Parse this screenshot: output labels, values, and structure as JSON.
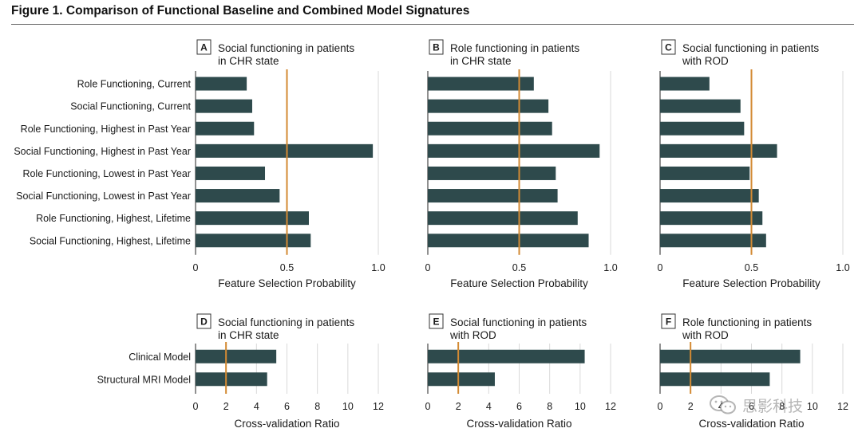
{
  "figure": {
    "title": "Figure 1. Comparison of Functional Baseline and Combined Model Signatures",
    "watermark": "思影科技"
  },
  "colors": {
    "bar": "#2e4a4c",
    "reference_line": "#d38a33",
    "grid": "#d9d9d9",
    "axis": "#222222"
  },
  "chart_data": [
    {
      "panel_letter": "A",
      "title_lines": [
        "Social functioning in patients",
        "in CHR state"
      ],
      "type": "bar",
      "orientation": "horizontal",
      "categories": [
        "Role Functioning, Current",
        "Social Functioning, Current",
        "Role Functioning, Highest in Past Year",
        "Social Functioning, Highest in Past Year",
        "Role Functioning, Lowest in Past Year",
        "Social Functioning, Lowest in Past Year",
        "Role Functioning, Highest, Lifetime",
        "Social Functioning, Highest, Lifetime"
      ],
      "values": [
        0.28,
        0.31,
        0.32,
        0.97,
        0.38,
        0.46,
        0.62,
        0.63
      ],
      "reference_line": 0.5,
      "xlim": [
        0,
        1
      ],
      "xticks": [
        "0",
        "0.5",
        "1.0"
      ],
      "xlabel": "Feature Selection Probability",
      "grid": true
    },
    {
      "panel_letter": "B",
      "title_lines": [
        "Role functioning in patients",
        "in CHR state"
      ],
      "type": "bar",
      "orientation": "horizontal",
      "categories": [
        "Role Functioning, Current",
        "Social Functioning, Current",
        "Role Functioning, Highest in Past Year",
        "Social Functioning, Highest in Past Year",
        "Role Functioning, Lowest in Past Year",
        "Social Functioning, Lowest in Past Year",
        "Role Functioning, Highest, Lifetime",
        "Social Functioning, Highest, Lifetime"
      ],
      "values": [
        0.58,
        0.66,
        0.68,
        0.94,
        0.7,
        0.71,
        0.82,
        0.88
      ],
      "reference_line": 0.5,
      "xlim": [
        0,
        1
      ],
      "xticks": [
        "0",
        "0.5",
        "1.0"
      ],
      "xlabel": "Feature Selection Probability",
      "grid": true
    },
    {
      "panel_letter": "C",
      "title_lines": [
        "Social functioning in patients",
        "with ROD"
      ],
      "type": "bar",
      "orientation": "horizontal",
      "categories": [
        "Role Functioning, Current",
        "Social Functioning, Current",
        "Role Functioning, Highest in Past Year",
        "Social Functioning, Highest in Past Year",
        "Role Functioning, Lowest in Past Year",
        "Social Functioning, Lowest in Past Year",
        "Role Functioning, Highest, Lifetime",
        "Social Functioning, Highest, Lifetime"
      ],
      "values": [
        0.27,
        0.44,
        0.46,
        0.64,
        0.49,
        0.54,
        0.56,
        0.58
      ],
      "reference_line": 0.5,
      "xlim": [
        0,
        1
      ],
      "xticks": [
        "0",
        "0.5",
        "1.0"
      ],
      "xlabel": "Feature Selection Probability",
      "grid": true
    },
    {
      "panel_letter": "D",
      "title_lines": [
        "Social functioning in patients",
        "in CHR state"
      ],
      "type": "bar",
      "orientation": "horizontal",
      "categories": [
        "Clinical Model",
        "Structural MRI Model"
      ],
      "values": [
        5.3,
        4.7
      ],
      "reference_line": 2,
      "xlim": [
        0,
        12
      ],
      "xticks": [
        "0",
        "2",
        "4",
        "6",
        "8",
        "10",
        "12"
      ],
      "xlabel": "Cross-validation Ratio",
      "grid": true
    },
    {
      "panel_letter": "E",
      "title_lines": [
        "Social functioning in patients",
        "with ROD"
      ],
      "type": "bar",
      "orientation": "horizontal",
      "categories": [
        "Clinical Model",
        "Structural MRI Model"
      ],
      "values": [
        10.3,
        4.4
      ],
      "reference_line": 2,
      "xlim": [
        0,
        12
      ],
      "xticks": [
        "0",
        "2",
        "4",
        "6",
        "8",
        "10",
        "12"
      ],
      "xlabel": "Cross-validation Ratio",
      "grid": true
    },
    {
      "panel_letter": "F",
      "title_lines": [
        "Role functioning in patients",
        "with ROD"
      ],
      "type": "bar",
      "orientation": "horizontal",
      "categories": [
        "Clinical Model",
        "Structural MRI Model"
      ],
      "values": [
        9.2,
        7.2
      ],
      "reference_line": 2,
      "xlim": [
        0,
        12
      ],
      "xticks": [
        "0",
        "2",
        "4",
        "6",
        "8",
        "10",
        "12"
      ],
      "xlabel": "Cross-validation Ratio",
      "grid": true
    }
  ]
}
